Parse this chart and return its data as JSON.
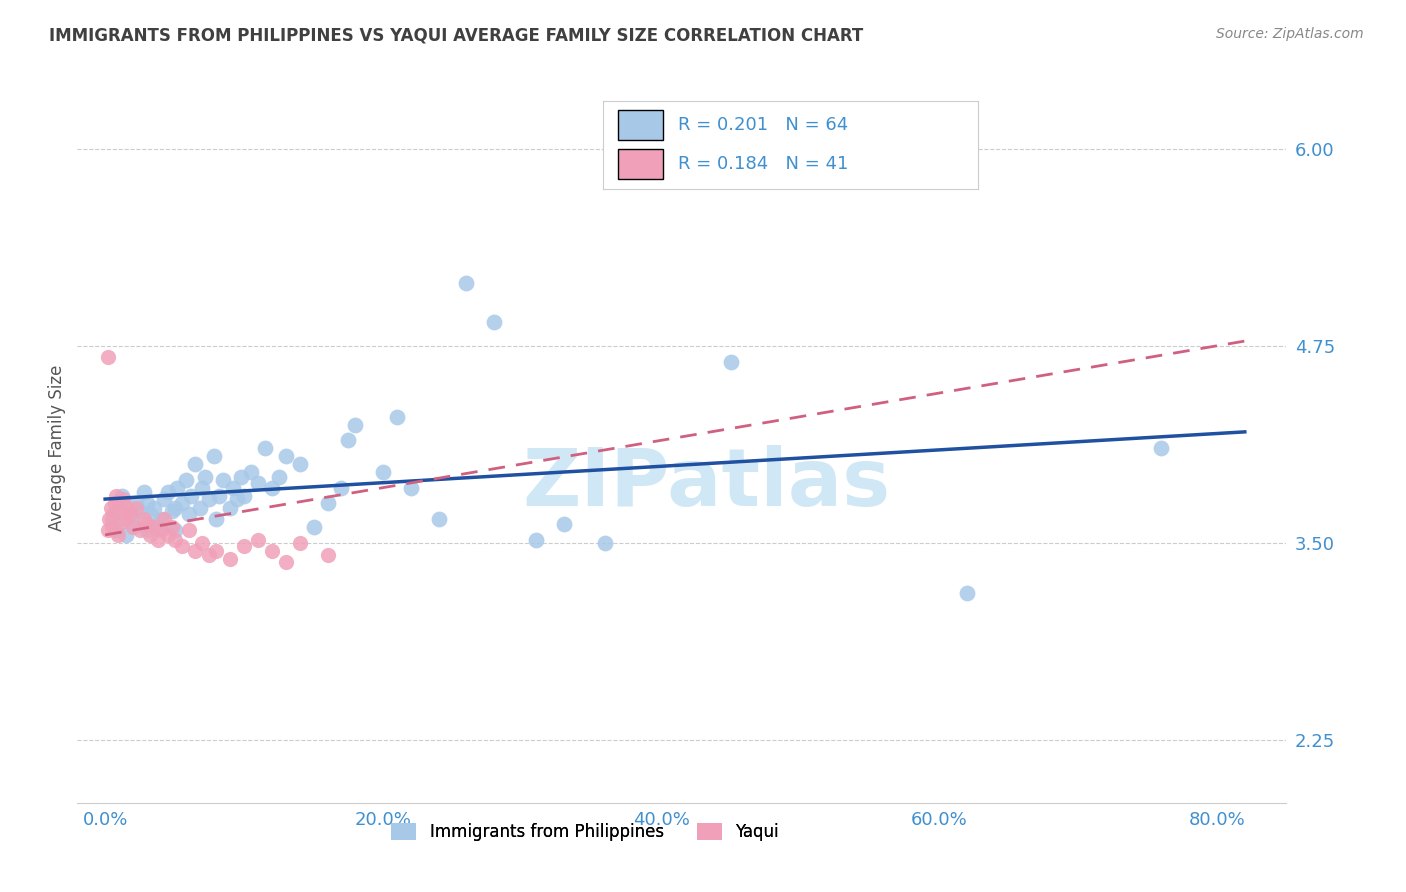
{
  "title": "IMMIGRANTS FROM PHILIPPINES VS YAQUI AVERAGE FAMILY SIZE CORRELATION CHART",
  "source": "Source: ZipAtlas.com",
  "ylabel": "Average Family Size",
  "xlabel_ticks": [
    "0.0%",
    "20.0%",
    "40.0%",
    "60.0%",
    "80.0%"
  ],
  "xlabel_vals": [
    0.0,
    0.2,
    0.4,
    0.6,
    0.8
  ],
  "ytick_labels": [
    "2.25",
    "3.50",
    "4.75",
    "6.00"
  ],
  "ytick_vals": [
    2.25,
    3.5,
    4.75,
    6.0
  ],
  "ylim": [
    1.85,
    6.35
  ],
  "xlim": [
    -0.02,
    0.85
  ],
  "watermark": "ZIPatlas",
  "legend_R_blue": "R = 0.201",
  "legend_N_blue": "N = 64",
  "legend_R_pink": "R = 0.184",
  "legend_N_pink": "N = 41",
  "blue_color": "#a8c8e8",
  "pink_color": "#f0a0b8",
  "blue_line_color": "#2050a0",
  "pink_line_color": "#d06080",
  "title_color": "#404040",
  "axis_color": "#4090d0",
  "source_color": "#888888",
  "grid_color": "#cccccc",
  "watermark_color": "#d0e8f5",
  "blue_scatter_x": [
    0.005,
    0.008,
    0.01,
    0.012,
    0.015,
    0.018,
    0.02,
    0.022,
    0.025,
    0.028,
    0.03,
    0.03,
    0.032,
    0.035,
    0.038,
    0.04,
    0.042,
    0.045,
    0.048,
    0.05,
    0.05,
    0.052,
    0.055,
    0.058,
    0.06,
    0.062,
    0.065,
    0.068,
    0.07,
    0.072,
    0.075,
    0.078,
    0.08,
    0.082,
    0.085,
    0.09,
    0.092,
    0.095,
    0.098,
    0.1,
    0.105,
    0.11,
    0.115,
    0.12,
    0.125,
    0.13,
    0.14,
    0.15,
    0.16,
    0.17,
    0.175,
    0.18,
    0.2,
    0.21,
    0.22,
    0.24,
    0.26,
    0.28,
    0.31,
    0.33,
    0.36,
    0.45,
    0.62,
    0.76
  ],
  "blue_scatter_y": [
    3.65,
    3.58,
    3.72,
    3.8,
    3.55,
    3.68,
    3.62,
    3.75,
    3.7,
    3.82,
    3.58,
    3.75,
    3.68,
    3.72,
    3.6,
    3.65,
    3.78,
    3.82,
    3.7,
    3.58,
    3.72,
    3.85,
    3.75,
    3.9,
    3.68,
    3.8,
    4.0,
    3.72,
    3.85,
    3.92,
    3.78,
    4.05,
    3.65,
    3.8,
    3.9,
    3.72,
    3.85,
    3.78,
    3.92,
    3.8,
    3.95,
    3.88,
    4.1,
    3.85,
    3.92,
    4.05,
    4.0,
    3.6,
    3.75,
    3.85,
    4.15,
    4.25,
    3.95,
    4.3,
    3.85,
    3.65,
    5.15,
    4.9,
    3.52,
    3.62,
    3.5,
    4.65,
    3.18,
    4.1
  ],
  "pink_scatter_x": [
    0.002,
    0.003,
    0.004,
    0.005,
    0.006,
    0.007,
    0.008,
    0.009,
    0.01,
    0.012,
    0.013,
    0.015,
    0.016,
    0.018,
    0.02,
    0.022,
    0.025,
    0.028,
    0.03,
    0.032,
    0.035,
    0.038,
    0.04,
    0.042,
    0.045,
    0.048,
    0.05,
    0.055,
    0.06,
    0.065,
    0.07,
    0.075,
    0.08,
    0.09,
    0.1,
    0.11,
    0.12,
    0.13,
    0.14,
    0.16,
    0.002
  ],
  "pink_scatter_y": [
    3.58,
    3.65,
    3.72,
    3.6,
    3.68,
    3.75,
    3.8,
    3.55,
    3.62,
    3.7,
    3.78,
    3.65,
    3.72,
    3.68,
    3.6,
    3.72,
    3.58,
    3.65,
    3.62,
    3.55,
    3.6,
    3.52,
    3.58,
    3.65,
    3.55,
    3.6,
    3.52,
    3.48,
    3.58,
    3.45,
    3.5,
    3.42,
    3.45,
    3.4,
    3.48,
    3.52,
    3.45,
    3.38,
    3.5,
    3.42,
    4.68
  ]
}
